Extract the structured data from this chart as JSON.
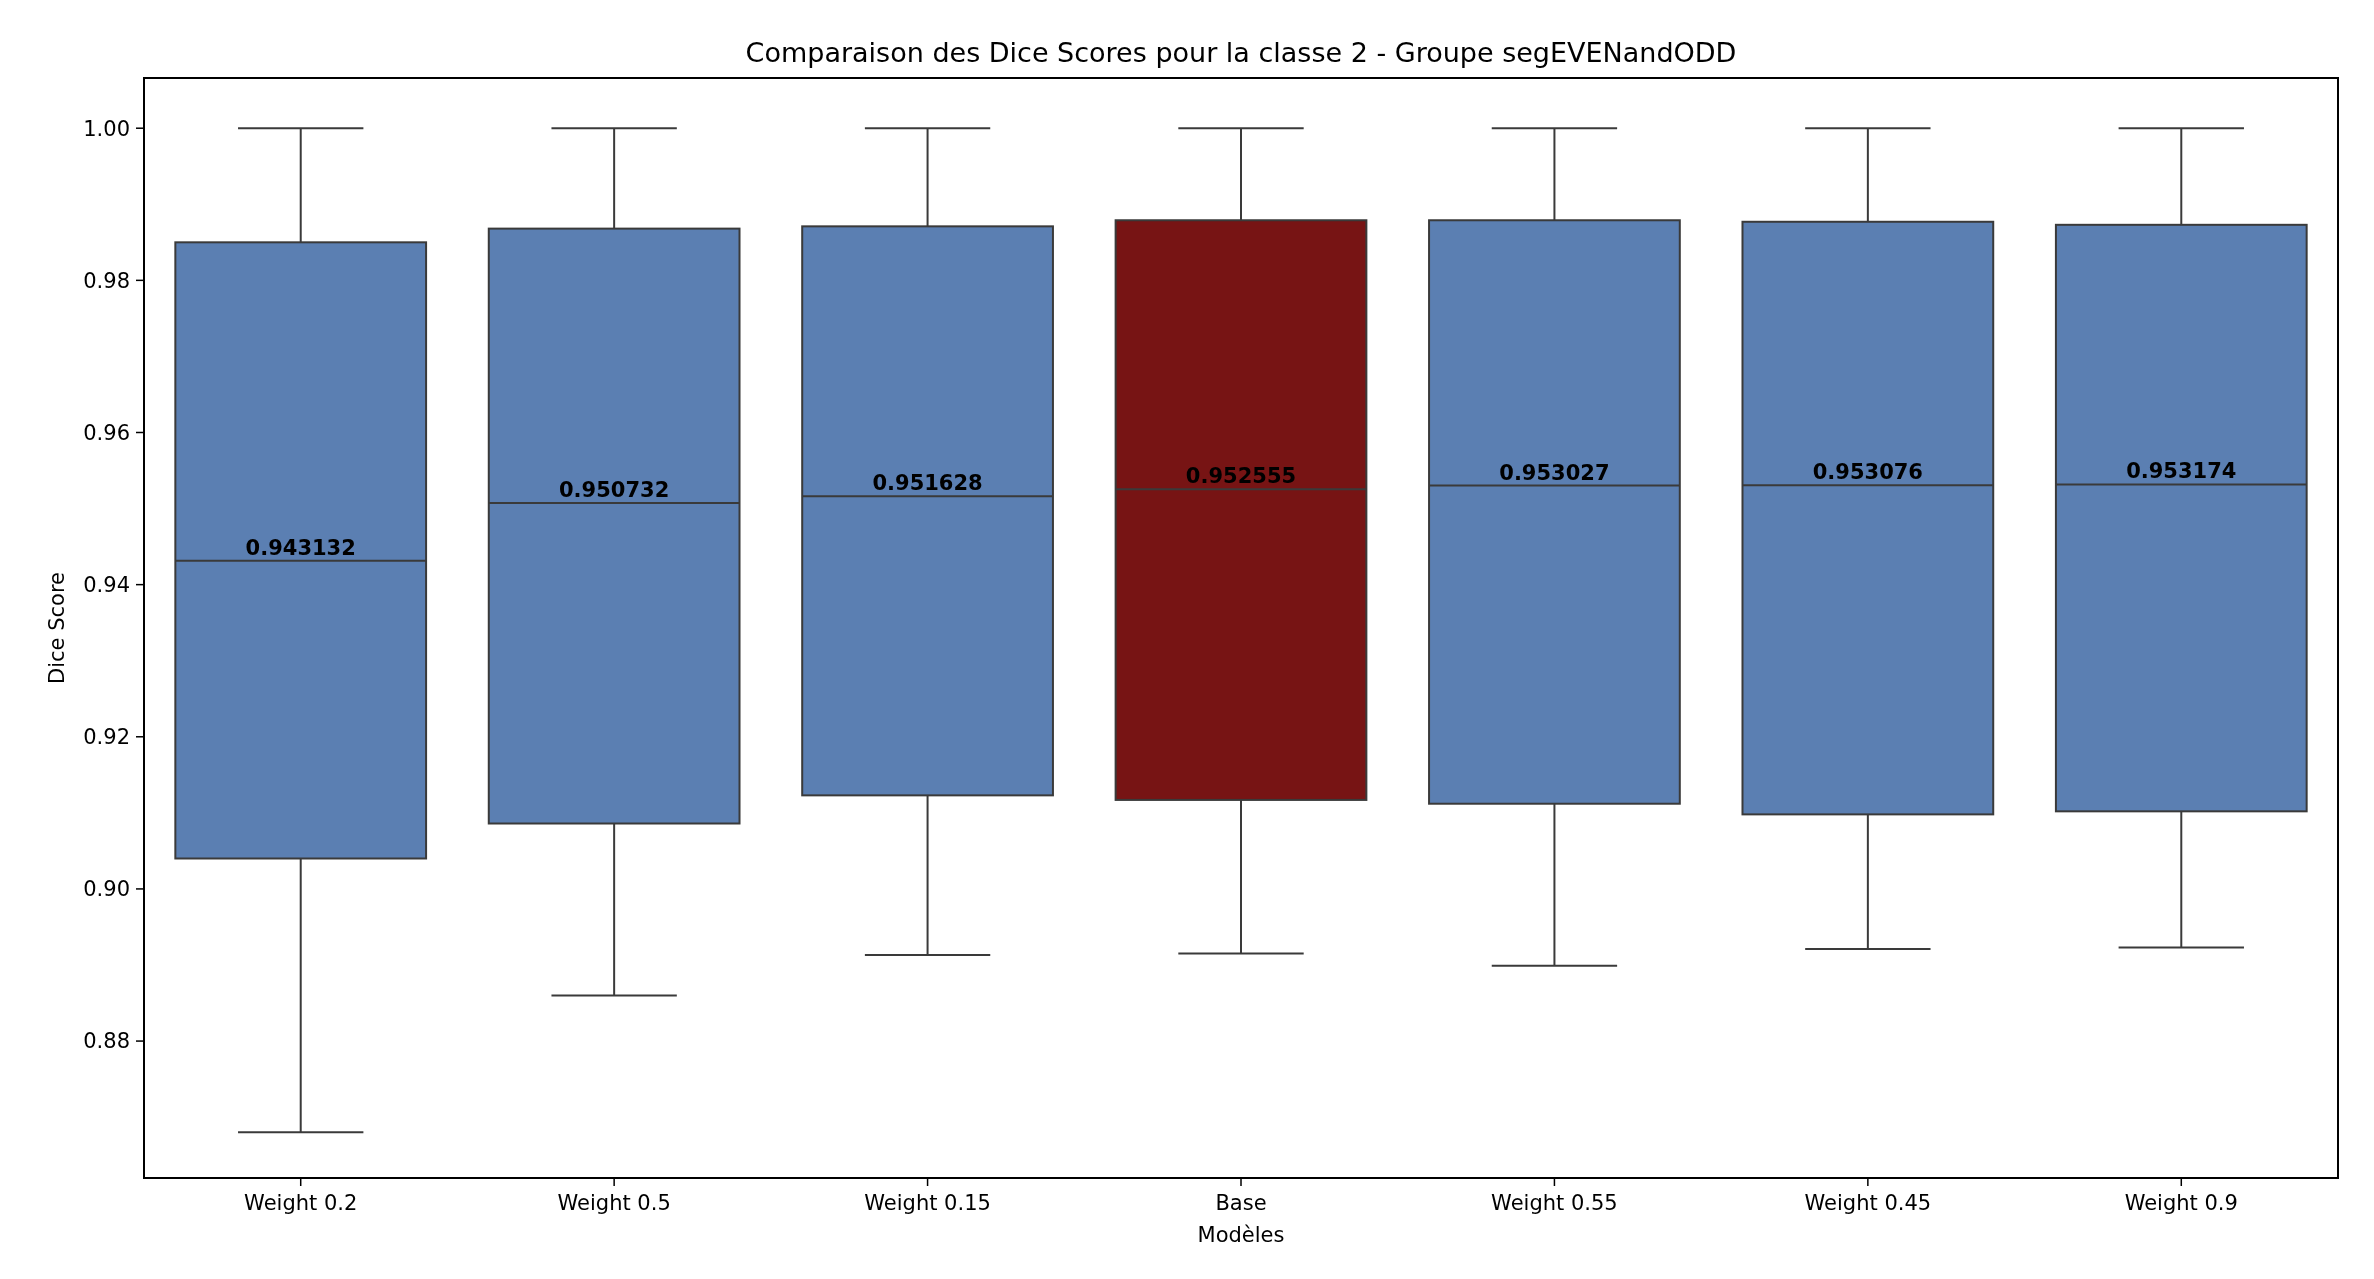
{
  "chart_data": {
    "type": "box",
    "title": "Comparaison des Dice Scores pour la classe 2 - Groupe segEVENandODD",
    "xlabel": "Modèles",
    "ylabel": "Dice Score",
    "categories": [
      "Weight 0.2",
      "Weight 0.5",
      "Weight 0.15",
      "Base",
      "Weight 0.55",
      "Weight 0.45",
      "Weight 0.9"
    ],
    "colors": [
      "#5b7fb2",
      "#5b7fb2",
      "#5b7fb2",
      "#771414",
      "#5b7fb2",
      "#5b7fb2",
      "#5b7fb2"
    ],
    "boxes": [
      {
        "low": 0.868,
        "q1": 0.904,
        "median": 0.943132,
        "q3": 0.985,
        "high": 1.0
      },
      {
        "low": 0.886,
        "q1": 0.9086,
        "median": 0.950732,
        "q3": 0.9868,
        "high": 1.0
      },
      {
        "low": 0.8913,
        "q1": 0.9123,
        "median": 0.951628,
        "q3": 0.9871,
        "high": 1.0
      },
      {
        "low": 0.8915,
        "q1": 0.9117,
        "median": 0.952555,
        "q3": 0.9879,
        "high": 1.0
      },
      {
        "low": 0.8899,
        "q1": 0.9112,
        "median": 0.953027,
        "q3": 0.9879,
        "high": 1.0
      },
      {
        "low": 0.8921,
        "q1": 0.9098,
        "median": 0.953076,
        "q3": 0.9877,
        "high": 1.0
      },
      {
        "low": 0.8923,
        "q1": 0.9102,
        "median": 0.953174,
        "q3": 0.9873,
        "high": 1.0
      }
    ],
    "annotations": [
      {
        "text": "0.943132",
        "x": "Weight 0.2",
        "y": 0.943132
      },
      {
        "text": "0.950732",
        "x": "Weight 0.5",
        "y": 0.950732
      },
      {
        "text": "0.951628",
        "x": "Weight 0.15",
        "y": 0.951628
      },
      {
        "text": "0.952555",
        "x": "Base",
        "y": 0.952555
      },
      {
        "text": "0.953027",
        "x": "Weight 0.55",
        "y": 0.953027
      },
      {
        "text": "0.953076",
        "x": "Weight 0.45",
        "y": 0.953076
      },
      {
        "text": "0.953174",
        "x": "Weight 0.9",
        "y": 0.953174
      }
    ],
    "ylim": [
      0.862,
      1.0066
    ],
    "yticks": [
      {
        "value": 0.88,
        "label": "0.88"
      },
      {
        "value": 0.9,
        "label": "0.90"
      },
      {
        "value": 0.92,
        "label": "0.92"
      },
      {
        "value": 0.94,
        "label": "0.94"
      },
      {
        "value": 0.96,
        "label": "0.96"
      },
      {
        "value": 0.98,
        "label": "0.98"
      },
      {
        "value": 1.0,
        "label": "1.00"
      }
    ],
    "grid": false
  }
}
